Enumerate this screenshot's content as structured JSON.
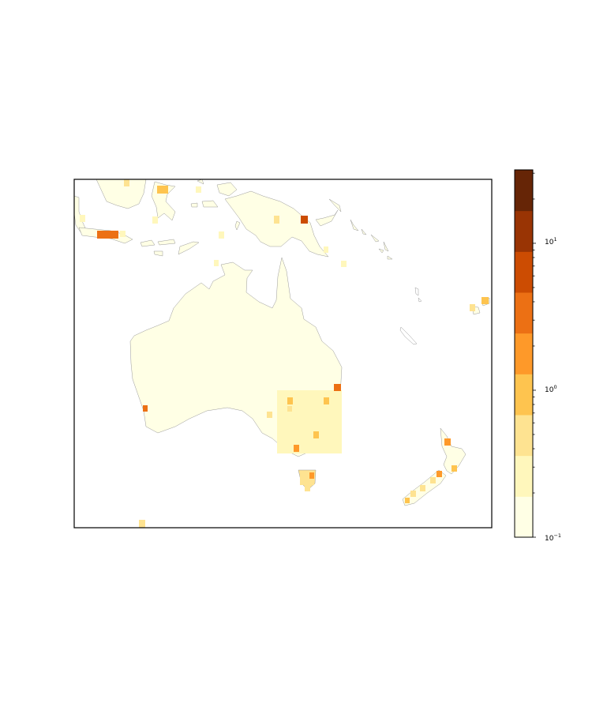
{
  "map": {
    "region": "Oceania",
    "frame": "on",
    "land_fill": "#ffffe5",
    "coast_color": "#999999",
    "cells": [
      {
        "name": "java-west-cell",
        "value": 4.0
      },
      {
        "name": "papua-cell",
        "value": 5.0
      },
      {
        "name": "sulawesi-cell",
        "value": 0.9
      },
      {
        "name": "se-australia-block",
        "value": 0.3
      },
      {
        "name": "nsw-coast-cell",
        "value": 2.5
      },
      {
        "name": "perth-cell",
        "value": 4.0
      },
      {
        "name": "tasmania-cell",
        "value": 0.6
      },
      {
        "name": "nz-cell",
        "value": 2.0
      },
      {
        "name": "fiji-cell",
        "value": 1.2
      }
    ]
  },
  "colorbar": {
    "scale": "log",
    "range": [
      0.1,
      31.6
    ],
    "colors": [
      "#ffffe5",
      "#fff7bc",
      "#fee391",
      "#fec44f",
      "#fe9929",
      "#ec7014",
      "#cc4c02",
      "#993404",
      "#662506"
    ],
    "tick_labels": [
      {
        "base": "10",
        "exp": "−1",
        "value": 0.1
      },
      {
        "base": "10",
        "exp": "0",
        "value": 1
      },
      {
        "base": "10",
        "exp": "1",
        "value": 10
      }
    ]
  }
}
